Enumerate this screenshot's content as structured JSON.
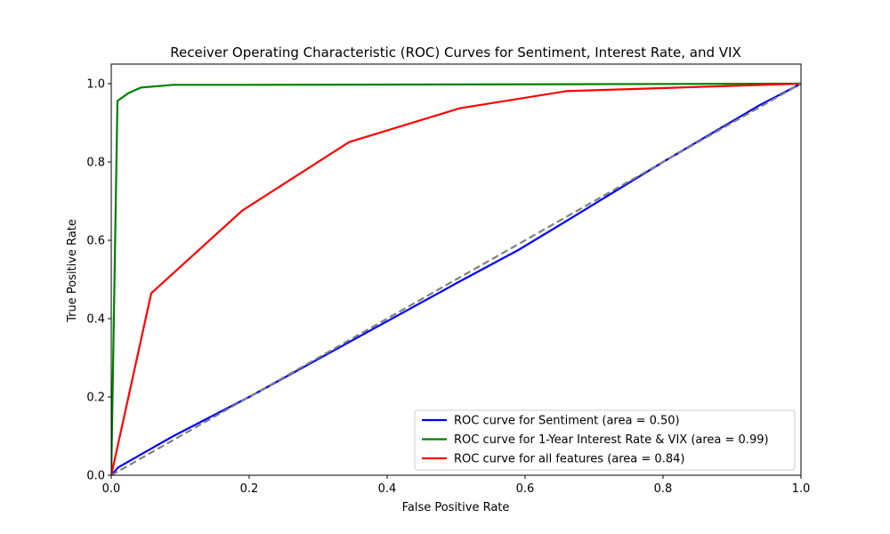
{
  "chart_data": {
    "type": "line",
    "title": "Receiver Operating Characteristic (ROC) Curves for Sentiment, Interest Rate, and VIX",
    "xlabel": "False Positive Rate",
    "ylabel": "True Positive Rate",
    "xlim": [
      0,
      1
    ],
    "ylim": [
      0,
      1.05
    ],
    "xticks": [
      "0.0",
      "0.2",
      "0.4",
      "0.6",
      "0.8",
      "1.0"
    ],
    "yticks": [
      "0.0",
      "0.2",
      "0.4",
      "0.6",
      "0.8",
      "1.0"
    ],
    "grid": false,
    "legend_position": "lower-right",
    "series": [
      {
        "name": "ROC curve for Sentiment (area = 0.50)",
        "color": "#0000ff",
        "x": [
          0,
          0.01,
          0.05,
          0.09,
          0.2,
          0.35,
          0.5,
          0.59,
          0.67,
          0.8,
          0.94,
          1.0
        ],
        "y": [
          0,
          0.02,
          0.06,
          0.1,
          0.2,
          0.345,
          0.49,
          0.575,
          0.66,
          0.8,
          0.945,
          1.0
        ]
      },
      {
        "name": "ROC curve for 1-Year Interest Rate & VIX (area = 0.99)",
        "color": "#008000",
        "x": [
          0,
          0.009,
          0.025,
          0.043,
          0.09,
          0.2,
          0.5,
          1.0
        ],
        "y": [
          0,
          0.956,
          0.976,
          0.99,
          0.997,
          0.997,
          0.998,
          1.0
        ],
        "start_vertical": true
      },
      {
        "name": "ROC curve for all features (area = 0.84)",
        "color": "#ff0000",
        "x": [
          0,
          0.058,
          0.19,
          0.345,
          0.505,
          0.66,
          1.0
        ],
        "y": [
          0,
          0.465,
          0.676,
          0.851,
          0.937,
          0.981,
          1.0
        ]
      }
    ],
    "reference_line": {
      "color": "#808080",
      "x": [
        0,
        1
      ],
      "y": [
        0,
        1
      ]
    }
  }
}
